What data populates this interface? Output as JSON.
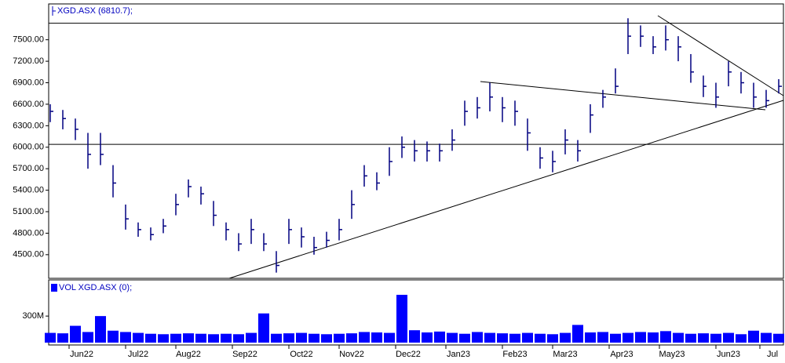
{
  "chart_data": [
    {
      "type": "hlc",
      "title": "XGD.ASX (6810.7);",
      "color": "#000080",
      "xlim": [
        0,
        58
      ],
      "ylim": [
        4170,
        8000
      ],
      "yticks": [
        {
          "value": 4500,
          "label": "4500.00"
        },
        {
          "value": 4800,
          "label": "4800.00"
        },
        {
          "value": 5100,
          "label": "5100.00"
        },
        {
          "value": 5400,
          "label": "5400.00"
        },
        {
          "value": 5700,
          "label": "5700.00"
        },
        {
          "value": 6000,
          "label": "6000.00"
        },
        {
          "value": 6300,
          "label": "6300.00"
        },
        {
          "value": 6600,
          "label": "6600.00"
        },
        {
          "value": 6900,
          "label": "6900.00"
        },
        {
          "value": 7200,
          "label": "7200.00"
        },
        {
          "value": 7500,
          "label": "7500.00"
        }
      ],
      "hlines": [
        7730,
        6040
      ],
      "high": [
        6600,
        6520,
        6400,
        6200,
        6200,
        5750,
        5200,
        4950,
        4880,
        5000,
        5350,
        5550,
        5450,
        5250,
        4950,
        4800,
        5000,
        4800,
        4550,
        5000,
        4880,
        4750,
        4820,
        5000,
        5400,
        5750,
        5650,
        6000,
        6150,
        6100,
        6080,
        6050,
        6250,
        6650,
        6700,
        6900,
        6700,
        6650,
        6400,
        6000,
        5950,
        6250,
        6100,
        6600,
        6800,
        7100,
        7800,
        7700,
        7550,
        7700,
        7550,
        7300,
        7000,
        6900,
        7200,
        7050,
        6900,
        6800,
        6950
      ],
      "low": [
        6350,
        6250,
        6100,
        5700,
        5750,
        5300,
        4850,
        4750,
        4700,
        4800,
        5050,
        5300,
        5200,
        4900,
        4700,
        4550,
        4650,
        4550,
        4250,
        4650,
        4600,
        4500,
        4600,
        4700,
        5000,
        5450,
        5400,
        5600,
        5850,
        5800,
        5800,
        5800,
        5950,
        6300,
        6400,
        6500,
        6350,
        6300,
        5950,
        5700,
        5650,
        5900,
        5800,
        6200,
        6550,
        6750,
        7300,
        7400,
        7300,
        7350,
        7200,
        6900,
        6700,
        6550,
        6850,
        6750,
        6550,
        6550,
        6750
      ],
      "close": [
        6500,
        6400,
        6250,
        5900,
        5900,
        5500,
        5000,
        4850,
        4780,
        4900,
        5200,
        5450,
        5350,
        5050,
        4850,
        4650,
        4850,
        4650,
        4350,
        4850,
        4750,
        4600,
        4700,
        4850,
        5200,
        5600,
        5500,
        5800,
        6000,
        5950,
        5950,
        5950,
        6100,
        6500,
        6550,
        6700,
        6550,
        6500,
        6200,
        5850,
        5800,
        6100,
        5950,
        6450,
        6700,
        6850,
        7550,
        7550,
        7400,
        7500,
        7400,
        7050,
        6850,
        6700,
        7050,
        6900,
        6700,
        6650,
        6850
      ]
    },
    {
      "type": "bar",
      "title": "VOL XGD.ASX (0);",
      "color": "#0000ff",
      "xlim": [
        0,
        58
      ],
      "ylim": [
        0,
        700
      ],
      "yticks": [
        {
          "value": 300,
          "label": "300M"
        }
      ],
      "values": [
        110,
        105,
        190,
        120,
        300,
        135,
        120,
        110,
        100,
        95,
        100,
        105,
        100,
        95,
        100,
        95,
        110,
        330,
        100,
        105,
        110,
        100,
        95,
        100,
        105,
        120,
        115,
        110,
        540,
        140,
        115,
        125,
        110,
        100,
        120,
        110,
        105,
        100,
        110,
        100,
        95,
        110,
        200,
        115,
        120,
        100,
        110,
        120,
        115,
        130,
        110,
        100,
        105,
        100,
        110,
        95,
        135,
        110,
        100
      ],
      "xticks": [
        {
          "value": 2.5,
          "label": "Jun22"
        },
        {
          "value": 7,
          "label": "Jul22"
        },
        {
          "value": 11,
          "label": "Aug22"
        },
        {
          "value": 15.5,
          "label": "Sep22"
        },
        {
          "value": 20,
          "label": "Oct22"
        },
        {
          "value": 24,
          "label": "Nov22"
        },
        {
          "value": 28.5,
          "label": "Dec22"
        },
        {
          "value": 32.5,
          "label": "Jan23"
        },
        {
          "value": 37,
          "label": "Feb23"
        },
        {
          "value": 41,
          "label": "Mar23"
        },
        {
          "value": 45.5,
          "label": "Apr23"
        },
        {
          "value": 49.5,
          "label": "May23"
        },
        {
          "value": 54,
          "label": "Jun23"
        },
        {
          "value": 57.5,
          "label": "Jul"
        }
      ]
    }
  ]
}
